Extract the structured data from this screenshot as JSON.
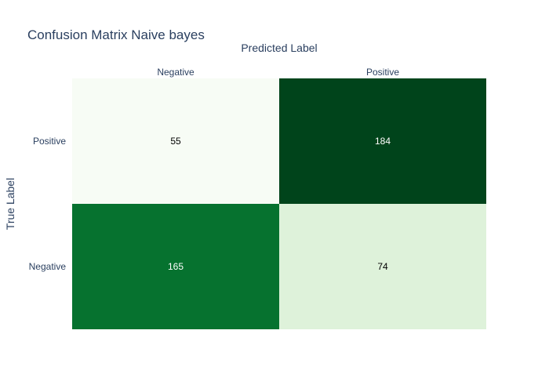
{
  "chart_data": {
    "type": "heatmap",
    "title": "Confusion Matrix Naive bayes",
    "xlabel": "Predicted Label",
    "ylabel": "True Label",
    "x_categories": [
      "Negative",
      "Positive"
    ],
    "x_axis_side": "top",
    "y_categories": [
      "Positive",
      "Negative"
    ],
    "y_order": "top-to-bottom",
    "values": [
      [
        55,
        184
      ],
      [
        165,
        74
      ]
    ],
    "colorscale": "Greens",
    "colorscale_range": [
      55,
      184
    ],
    "colorbar": false,
    "cell_colors": [
      [
        "#f7fcf5",
        "#00441b"
      ],
      [
        "#06722f",
        "#def2da"
      ]
    ],
    "cell_text_colors": [
      [
        "#000000",
        "#ffffff"
      ],
      [
        "#ffffff",
        "#000000"
      ]
    ],
    "grid": false,
    "legend": "none"
  }
}
